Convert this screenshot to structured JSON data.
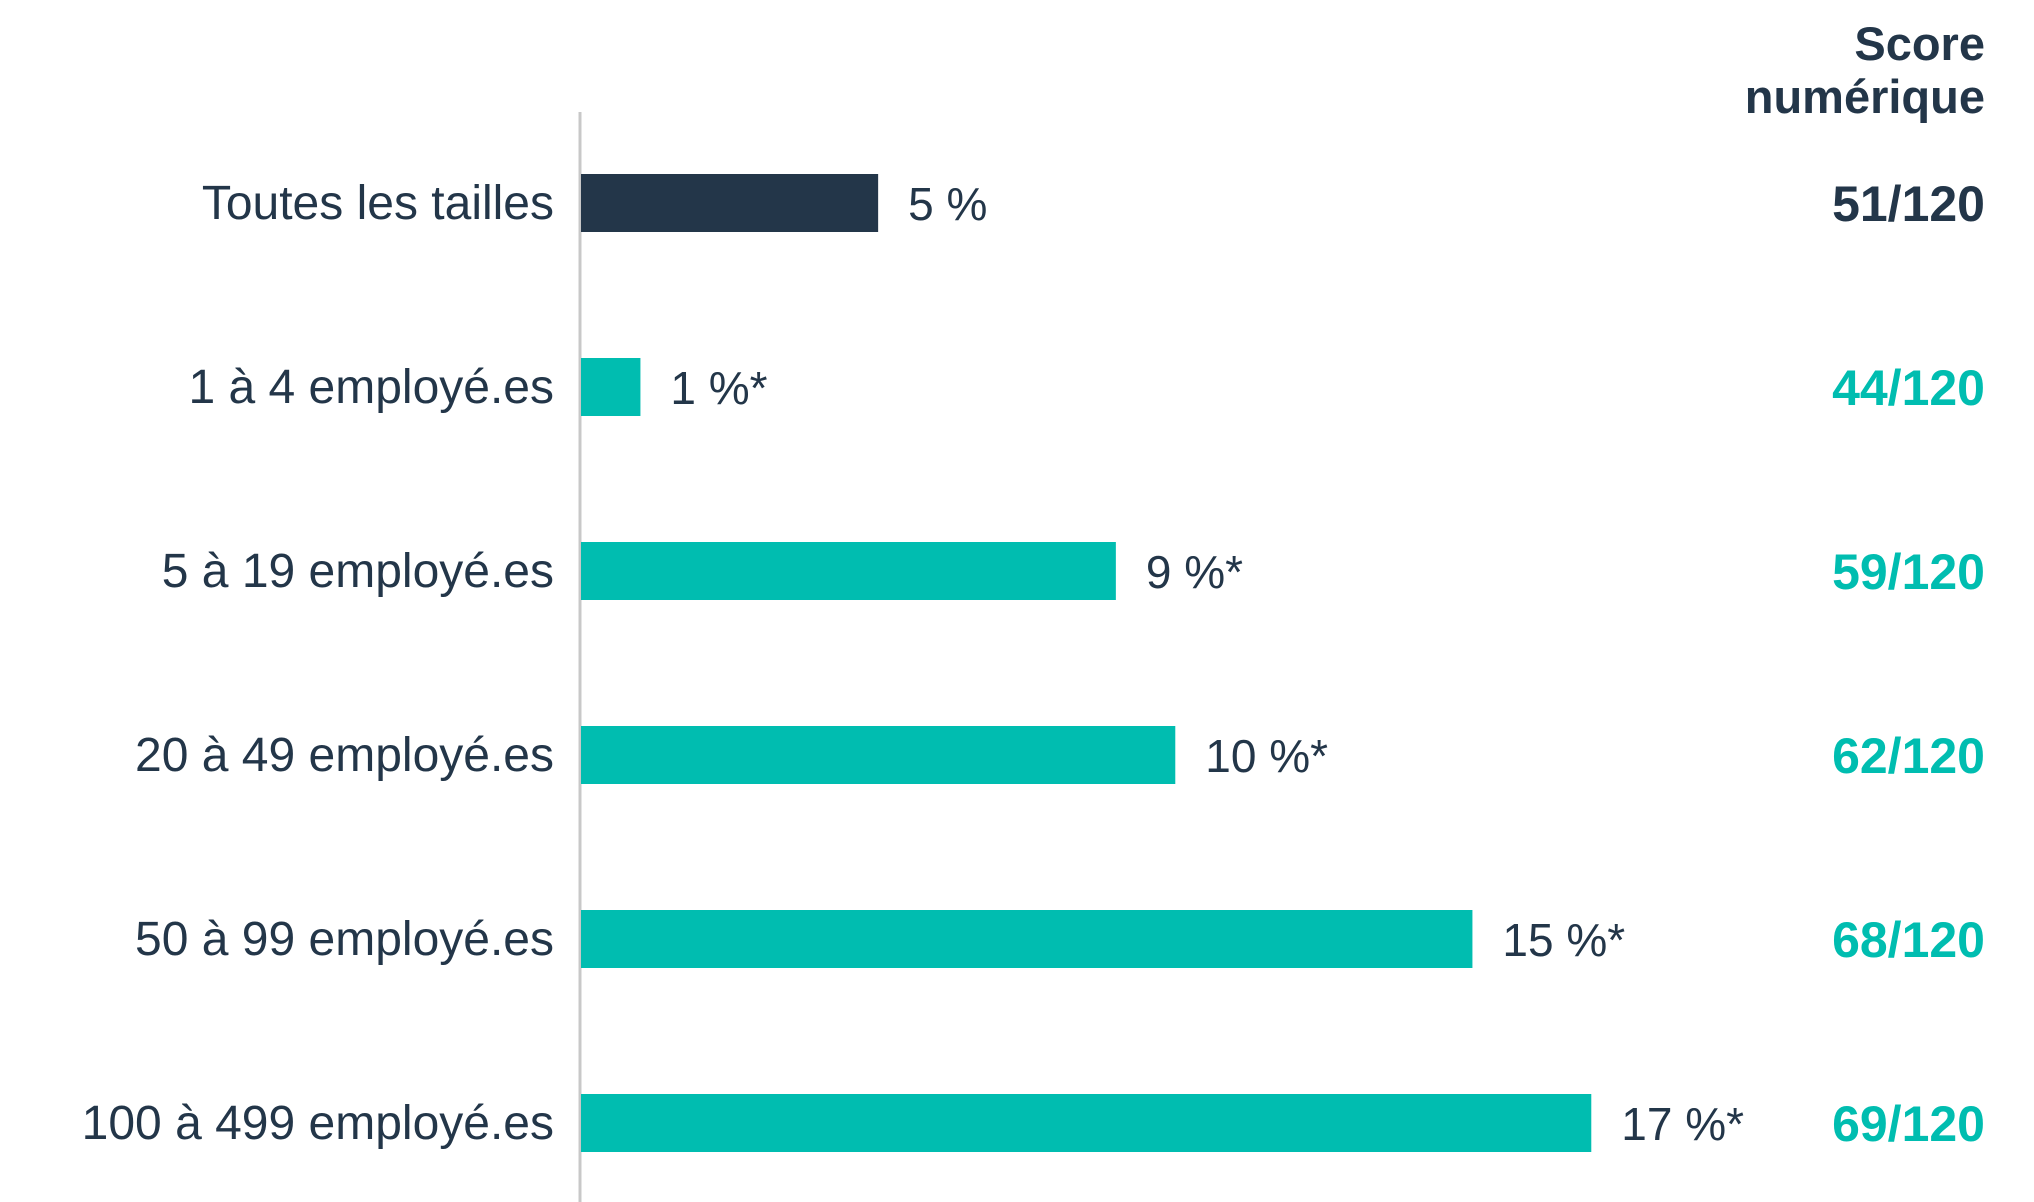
{
  "chart_data": {
    "type": "bar",
    "orientation": "horizontal",
    "categories": [
      "Toutes les tailles",
      "1 à 4 employé.es",
      "5 à 19 employé.es",
      "20 à 49 employé.es",
      "50 à 99 employé.es",
      "100 à 499 employé.es"
    ],
    "values": [
      5,
      1,
      9,
      10,
      15,
      17
    ],
    "value_labels": [
      "5 %",
      "1 %*",
      "9 %*",
      "10 %*",
      "15 %*",
      "17 %*"
    ],
    "xlim": [
      0,
      17.5
    ],
    "score_header": [
      "Score",
      "numérique"
    ],
    "scores": [
      "51/120",
      "44/120",
      "59/120",
      "62/120",
      "68/120",
      "69/120"
    ],
    "grid": false,
    "colors": {
      "highlight": "#233649",
      "bar": "#00BDB0",
      "text": "#233649",
      "axis": "#C8C8C8"
    }
  }
}
